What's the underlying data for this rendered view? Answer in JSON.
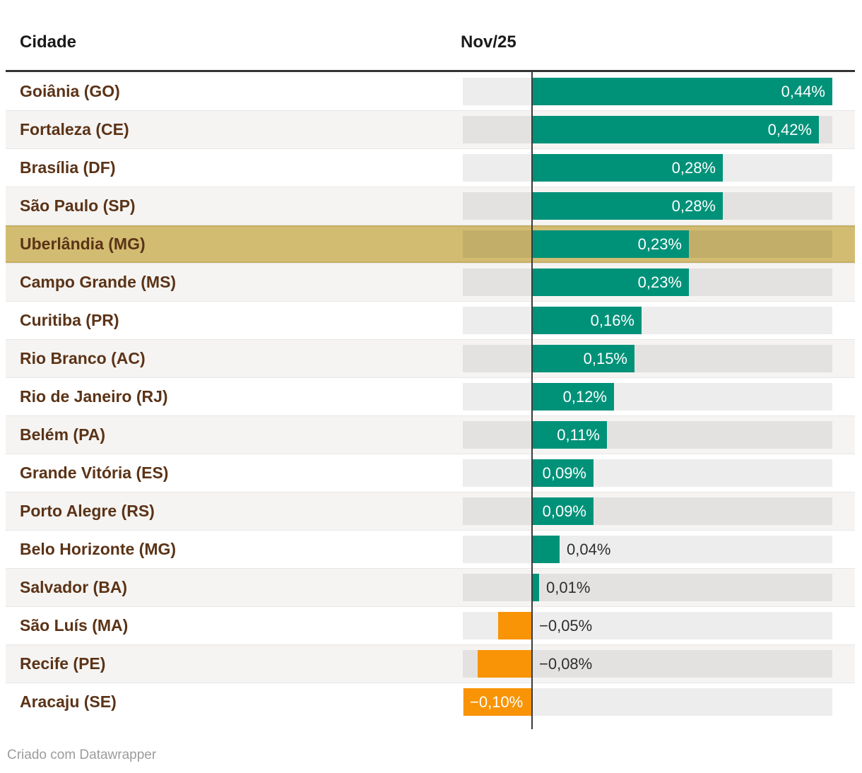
{
  "table": {
    "columns": [
      "Cidade",
      "Nov/25"
    ]
  },
  "footer": {
    "credit": "Criado com Datawrapper"
  },
  "colors": {
    "positive_bar": "#009279",
    "negative_bar": "#f89406",
    "highlight_row_bg": "#d2bc72",
    "city_label": "#5b3317",
    "zero_line": "#3a3a3a",
    "track": "#ebebeb",
    "header_rule": "#333333"
  },
  "chart_data": {
    "type": "bar",
    "orientation": "horizontal",
    "column_header": "Nov/25",
    "unit": "%",
    "xlim": [
      -0.1,
      0.44
    ],
    "zero_line": true,
    "grid": false,
    "legend": "none",
    "categories": [
      "Goiânia (GO)",
      "Fortaleza (CE)",
      "Brasília (DF)",
      "São Paulo (SP)",
      "Uberlândia (MG)",
      "Campo Grande (MS)",
      "Curitiba (PR)",
      "Rio Branco (AC)",
      "Rio de Janeiro (RJ)",
      "Belém (PA)",
      "Grande Vitória (ES)",
      "Porto Alegre (RS)",
      "Belo Horizonte (MG)",
      "Salvador (BA)",
      "São Luís (MA)",
      "Recife (PE)",
      "Aracaju (SE)"
    ],
    "values": [
      0.44,
      0.42,
      0.28,
      0.28,
      0.23,
      0.23,
      0.16,
      0.15,
      0.12,
      0.11,
      0.09,
      0.09,
      0.04,
      0.01,
      -0.05,
      -0.08,
      -0.1
    ],
    "display_values": [
      "0,44%",
      "0,42%",
      "0,28%",
      "0,28%",
      "0,23%",
      "0,23%",
      "0,16%",
      "0,15%",
      "0,12%",
      "0,11%",
      "0,09%",
      "0,09%",
      "0,04%",
      "0,01%",
      "−0,05%",
      "−0,08%",
      "−0,10%"
    ],
    "highlighted_category": "Uberlândia (MG)"
  }
}
